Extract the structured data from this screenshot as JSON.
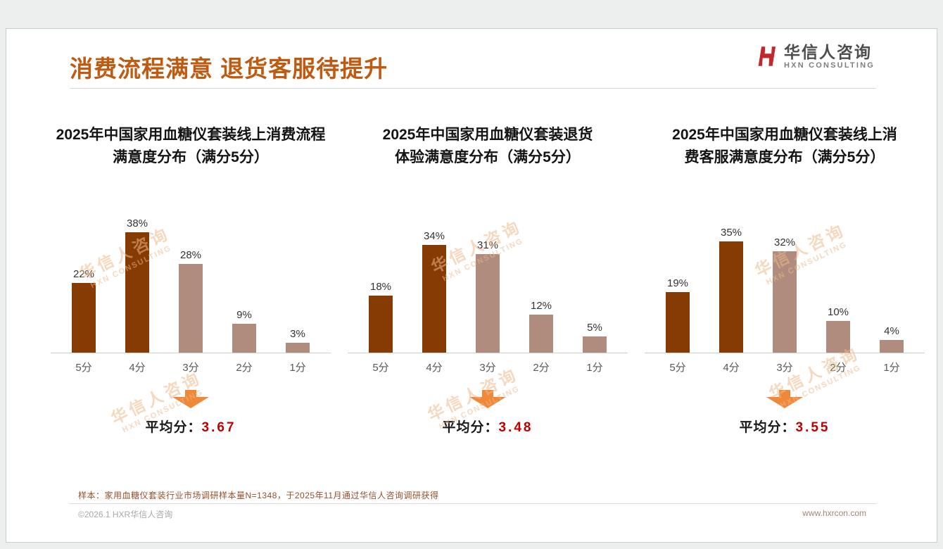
{
  "header": {
    "title": "消费流程满意 退货客服待提升",
    "logo_name": "华信人咨询",
    "logo_sub": "HXN CONSULTING"
  },
  "style": {
    "title_color": "#C05A11",
    "bar_dark": "#853B02",
    "bar_light": "#B08C7E",
    "bar_palette": [
      "#853B02",
      "#853B02",
      "#B08C7E",
      "#B08C7E",
      "#B08C7E"
    ],
    "arrow_color": "#F0883A",
    "avg_color": "#C00000",
    "logo_mark_color": "#C1272D"
  },
  "watermark": {
    "line1": "华信人咨询",
    "line2": "HXN CONSULTING"
  },
  "chart_data": [
    {
      "type": "bar",
      "title": "2025年中国家用血糖仪套装线上消费流程\n满意度分布（满分5分）",
      "categories": [
        "5分",
        "4分",
        "3分",
        "2分",
        "1分"
      ],
      "values": [
        22,
        38,
        28,
        9,
        3
      ],
      "unit": "%",
      "ylim": [
        0,
        40
      ],
      "grid": false,
      "avg_label": "平均分：",
      "avg_value": "3.67"
    },
    {
      "type": "bar",
      "title": "2025年中国家用血糖仪套装退货\n体验满意度分布（满分5分）",
      "categories": [
        "5分",
        "4分",
        "3分",
        "2分",
        "1分"
      ],
      "values": [
        18,
        34,
        31,
        12,
        5
      ],
      "unit": "%",
      "ylim": [
        0,
        40
      ],
      "grid": false,
      "avg_label": "平均分：",
      "avg_value": "3.48"
    },
    {
      "type": "bar",
      "title": "2025年中国家用血糖仪套装线上消\n费客服满意度分布（满分5分）",
      "categories": [
        "5分",
        "4分",
        "3分",
        "2分",
        "1分"
      ],
      "values": [
        19,
        35,
        32,
        10,
        4
      ],
      "unit": "%",
      "ylim": [
        0,
        40
      ],
      "grid": false,
      "avg_label": "平均分：",
      "avg_value": "3.55"
    }
  ],
  "footer": {
    "note": "样本：家用血糖仪套装行业市场调研样本量N=1348，于2025年11月通过华信人咨询调研获得",
    "copyright": "©2026.1 HXR华信人咨询",
    "website": "www.hxrcon.com"
  }
}
